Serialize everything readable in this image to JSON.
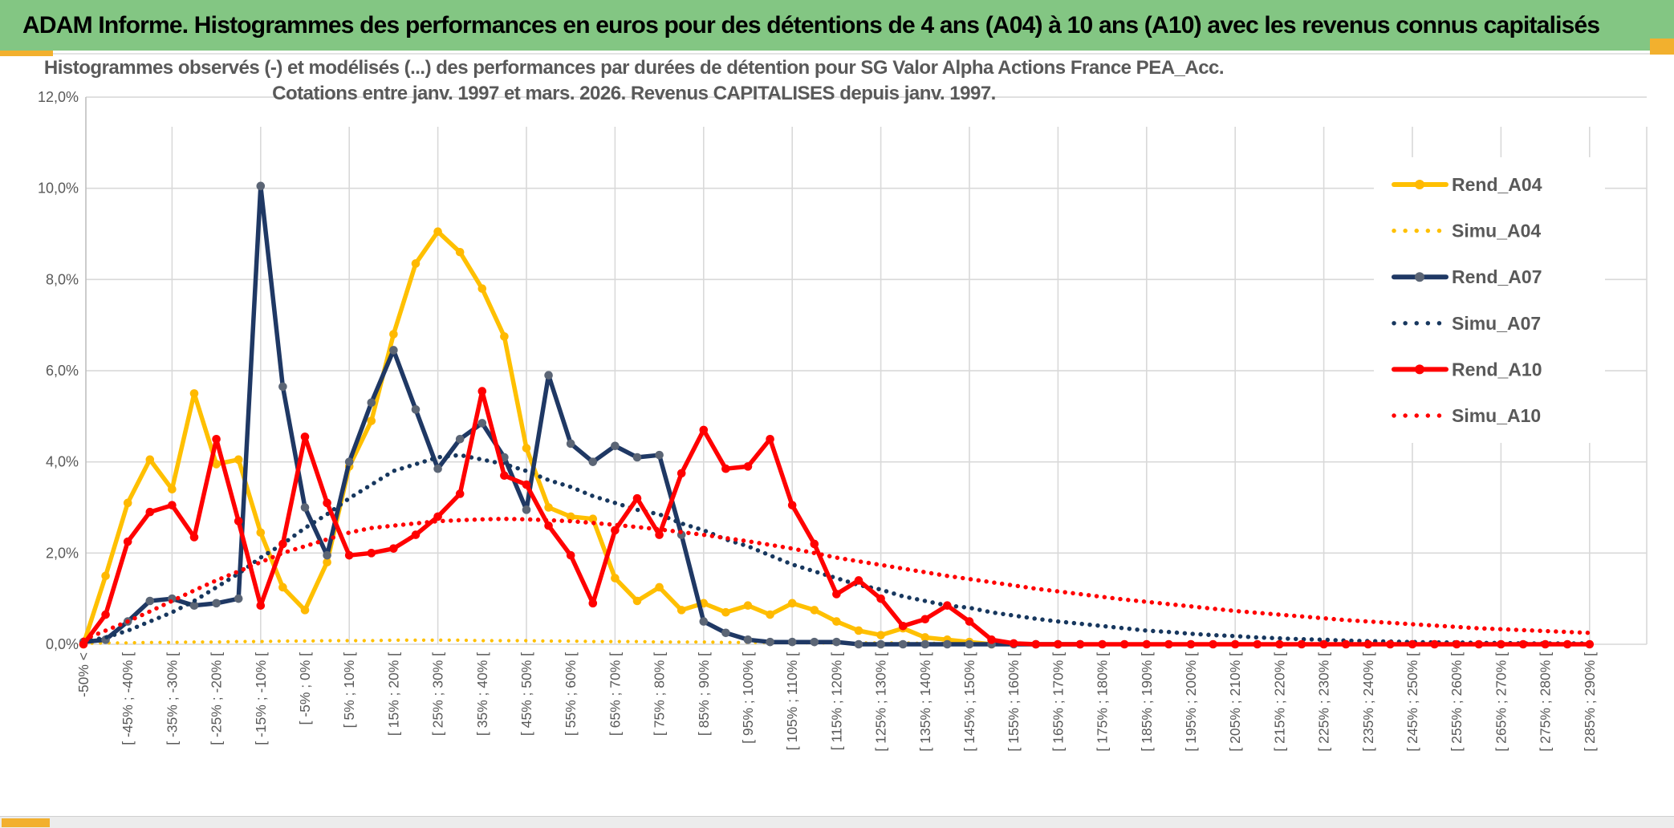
{
  "page": {
    "header_title": "ADAM Informe. Histogrammes des performances en euros pour des détentions de 4 ans (A04) à 10 ans (A10) avec les revenus connus capitalisés",
    "colors": {
      "header_green": "#83C683",
      "accent_gold": "#F2B02E",
      "grid": "#D9D9D9",
      "axis_text": "#595959",
      "title_text": "#595959"
    }
  },
  "chart_data": {
    "type": "line",
    "title_line1": "Histogrammes observés (-) et modélisés (...) des performances par durées de détention pour SG Valor Alpha Actions France PEA_Acc.",
    "title_line2": "Cotations entre janv. 1997 et mars. 2026. Revenus CAPITALISES depuis janv. 1997.",
    "ylim": [
      0,
      12
    ],
    "grid": true,
    "legend_position": "inside-top-right",
    "y_ticks": [
      {
        "v": 0,
        "label": "0,0%"
      },
      {
        "v": 2,
        "label": "2,0%"
      },
      {
        "v": 4,
        "label": "4,0%"
      },
      {
        "v": 6,
        "label": "6,0%"
      },
      {
        "v": 8,
        "label": "8,0%"
      },
      {
        "v": 10,
        "label": "10,0%"
      },
      {
        "v": 12,
        "label": "12,0%"
      }
    ],
    "x_bin_count": 69,
    "x_labels_every_other_bin": [
      "-50% <",
      "[ -45% ; -40% [",
      "[ -35% ; -30% [",
      "[ -25% ; -20% [",
      "[ -15% ; -10% [",
      "[ -5% ; 0% [",
      "[ 5% ; 10% [",
      "[ 15% ; 20% [",
      "[ 25% ; 30% [",
      "[ 35% ; 40% [",
      "[ 45% ; 50% [",
      "[ 55% ; 60% [",
      "[ 65% ; 70% [",
      "[ 75% ; 80% [",
      "[ 85% ; 90% [",
      "[ 95% ; 100% [",
      "[ 105% ; 110% [",
      "[ 115% ; 120% [",
      "[ 125% ; 130% [",
      "[ 135% ; 140% [",
      "[ 145% ; 150% [",
      "[ 155% ; 160% [",
      "[ 165% ; 170% [",
      "[ 175% ; 180% [",
      "[ 185% ; 190% [",
      "[ 195% ; 200% [",
      "[ 205% ; 210% [",
      "[ 215% ; 220% [",
      "[ 225% ; 230% [",
      "[ 235% ; 240% [",
      "[ 245% ; 250% [",
      "[ 255% ; 260% [",
      "[ 265% ; 270% [",
      "[ 275% ; 280% [",
      "[ 285% ; 290% ["
    ],
    "series": [
      {
        "name": "Rend_A04",
        "style": "solid",
        "color": "#FFC000",
        "marker": "#FFB900",
        "values": [
          0,
          1.5,
          3.1,
          4.05,
          3.4,
          5.5,
          3.95,
          4.05,
          2.45,
          1.25,
          0.75,
          1.8,
          3.9,
          4.9,
          6.8,
          8.35,
          9.05,
          8.6,
          7.8,
          6.75,
          4.3,
          3.0,
          2.8,
          2.75,
          1.45,
          0.95,
          1.25,
          0.75,
          0.9,
          0.7,
          0.85,
          0.65,
          0.9,
          0.75,
          0.5,
          0.3,
          0.2,
          0.35,
          0.15,
          0.1,
          0.05,
          0,
          null,
          null,
          null,
          null,
          null,
          null,
          null,
          null,
          null,
          null,
          null,
          null,
          null,
          null,
          null,
          null,
          null,
          null,
          null,
          null,
          null,
          null,
          null,
          null,
          null,
          null,
          null
        ]
      },
      {
        "name": "Simu_A04",
        "style": "dotted",
        "color": "#FFC000",
        "values": [
          0.02,
          0.03,
          0.03,
          0.04,
          0.04,
          0.05,
          0.05,
          0.06,
          0.06,
          0.07,
          0.07,
          0.08,
          0.08,
          0.08,
          0.09,
          0.09,
          0.09,
          0.09,
          0.08,
          0.08,
          0.08,
          0.07,
          0.07,
          0.06,
          0.06,
          0.06,
          0.05,
          0.05,
          0.05,
          0.04,
          0.04,
          0.04,
          0.04,
          0.03,
          0.03,
          0.03,
          0.03,
          0.03,
          0.02,
          0.02,
          0.02,
          null,
          null,
          null,
          null,
          null,
          null,
          null,
          null,
          null,
          null,
          null,
          null,
          null,
          null,
          null,
          null,
          null,
          null,
          null,
          null,
          null,
          null,
          null,
          null,
          null,
          null,
          null,
          null
        ]
      },
      {
        "name": "Rend_A07",
        "style": "solid",
        "color": "#1F3864",
        "marker": "#5B6575",
        "values": [
          0.05,
          0.1,
          0.5,
          0.95,
          1.0,
          0.85,
          0.9,
          1.0,
          10.05,
          5.65,
          3.0,
          1.95,
          4.0,
          5.3,
          6.45,
          5.15,
          3.85,
          4.5,
          4.85,
          4.1,
          2.95,
          5.9,
          4.4,
          4.0,
          4.35,
          4.1,
          4.15,
          2.4,
          0.5,
          0.25,
          0.1,
          0.05,
          0.05,
          0.05,
          0.05,
          0,
          0,
          0,
          0,
          0,
          0,
          0,
          0,
          0,
          0,
          0,
          null,
          null,
          null,
          null,
          null,
          null,
          null,
          null,
          null,
          null,
          null,
          null,
          null,
          null,
          null,
          null,
          null,
          null,
          null,
          null,
          null,
          null,
          null
        ]
      },
      {
        "name": "Simu_A07",
        "style": "dotted",
        "color": "#17375E",
        "values": [
          0.05,
          0.15,
          0.3,
          0.5,
          0.7,
          0.95,
          1.25,
          1.55,
          1.9,
          2.2,
          2.55,
          2.85,
          3.2,
          3.5,
          3.8,
          3.95,
          4.1,
          4.15,
          4.05,
          3.95,
          3.8,
          3.6,
          3.45,
          3.25,
          3.1,
          2.95,
          2.85,
          2.65,
          2.5,
          2.3,
          2.15,
          1.95,
          1.75,
          1.6,
          1.45,
          1.3,
          1.2,
          1.05,
          0.95,
          0.85,
          0.8,
          0.7,
          0.63,
          0.56,
          0.5,
          0.45,
          0.4,
          0.35,
          0.3,
          0.27,
          0.23,
          0.2,
          0.18,
          0.15,
          0.13,
          0.11,
          0.1,
          0.08,
          0.07,
          0.06,
          0.05,
          0.04,
          0.04,
          0.03,
          0.03,
          0.02,
          0.02,
          0.02,
          0.02
        ]
      },
      {
        "name": "Rend_A10",
        "style": "solid",
        "color": "#FF0000",
        "marker": "#FF0000",
        "values": [
          0,
          0.65,
          2.25,
          2.9,
          3.05,
          2.35,
          4.5,
          2.7,
          0.85,
          2.2,
          4.55,
          3.1,
          1.95,
          2.0,
          2.1,
          2.4,
          2.8,
          3.3,
          5.55,
          3.7,
          3.5,
          2.6,
          1.95,
          0.9,
          2.5,
          3.2,
          2.4,
          3.75,
          4.7,
          3.85,
          3.9,
          4.5,
          3.05,
          2.2,
          1.1,
          1.4,
          1.0,
          0.4,
          0.55,
          0.85,
          0.5,
          0.1,
          0.02,
          0,
          0,
          0,
          0,
          0,
          0,
          0,
          0,
          0,
          0,
          0,
          0,
          0,
          0,
          0,
          0,
          0,
          0,
          0,
          0,
          0,
          0,
          0,
          0,
          0,
          0
        ]
      },
      {
        "name": "Simu_A10",
        "style": "dotted",
        "color": "#FF0000",
        "values": [
          0.1,
          0.3,
          0.5,
          0.72,
          0.95,
          1.18,
          1.4,
          1.6,
          1.8,
          2.0,
          2.15,
          2.3,
          2.45,
          2.55,
          2.6,
          2.65,
          2.7,
          2.72,
          2.74,
          2.75,
          2.74,
          2.72,
          2.7,
          2.66,
          2.62,
          2.57,
          2.52,
          2.46,
          2.4,
          2.33,
          2.26,
          2.18,
          2.1,
          2.0,
          1.9,
          1.82,
          1.74,
          1.66,
          1.58,
          1.5,
          1.43,
          1.36,
          1.29,
          1.22,
          1.16,
          1.1,
          1.04,
          0.98,
          0.93,
          0.88,
          0.83,
          0.78,
          0.73,
          0.69,
          0.65,
          0.61,
          0.57,
          0.53,
          0.5,
          0.47,
          0.44,
          0.41,
          0.38,
          0.35,
          0.33,
          0.31,
          0.29,
          0.27,
          0.25
        ]
      }
    ]
  }
}
